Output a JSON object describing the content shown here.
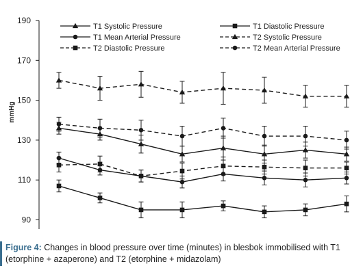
{
  "chart_data": {
    "type": "line",
    "ylabel": "mmHg",
    "xlabel": "",
    "ylim": [
      85,
      190
    ],
    "yticks": [
      90,
      110,
      130,
      150,
      170,
      190
    ],
    "x": [
      1,
      2,
      3,
      4,
      5,
      6,
      7,
      8
    ],
    "grid": false,
    "series": [
      {
        "name": "T1 Systolic Pressure",
        "marker": "triangle",
        "dashed": false,
        "values": [
          136,
          133,
          128,
          123,
          126,
          123,
          125,
          123
        ],
        "err": [
          3,
          3,
          4.5,
          4,
          6,
          4.5,
          4,
          3.5
        ]
      },
      {
        "name": "T1 Diastolic Pressure",
        "marker": "square",
        "dashed": false,
        "values": [
          107,
          101,
          95,
          95,
          97,
          94,
          95,
          98
        ],
        "err": [
          3,
          2.5,
          4,
          4,
          2.5,
          3,
          3,
          4
        ]
      },
      {
        "name": "T1 Mean Arterial Pressure",
        "marker": "circle",
        "dashed": false,
        "values": [
          121,
          115,
          112,
          109,
          113,
          111,
          110,
          111
        ],
        "err": [
          3,
          2.5,
          3,
          3,
          3.5,
          3.5,
          3.5,
          3
        ]
      },
      {
        "name": "T2 Systolic Pressure",
        "marker": "triangle",
        "dashed": true,
        "values": [
          160,
          156,
          158,
          154,
          156,
          155,
          152,
          152
        ],
        "err": [
          4,
          6,
          6.5,
          5.5,
          8,
          6.5,
          5.5,
          5.5
        ]
      },
      {
        "name": "T2 Diastolic Pressure",
        "marker": "square",
        "dashed": true,
        "values": [
          117.5,
          118,
          112,
          114.5,
          117,
          116.5,
          116,
          116
        ],
        "err": [
          3.5,
          4,
          3,
          4,
          4.5,
          3.5,
          4,
          3
        ]
      },
      {
        "name": "T2 Mean Arterial Pressure",
        "marker": "circle",
        "dashed": true,
        "values": [
          138,
          136,
          135,
          132,
          136,
          132,
          132,
          130
        ],
        "err": [
          3.5,
          4.5,
          5,
          5,
          5,
          5,
          5,
          4.5
        ]
      }
    ],
    "legend_position": "top"
  },
  "caption": {
    "label": "Figure 4:",
    "text": " Changes in blood pressure over time (minutes) in blesbok immobilised with T1 (etorphine + azaperone) and T2 (etorphine + midazolam)"
  },
  "colors": {
    "line": "#1a1a1a",
    "caption_label": "#3a6e8f"
  }
}
